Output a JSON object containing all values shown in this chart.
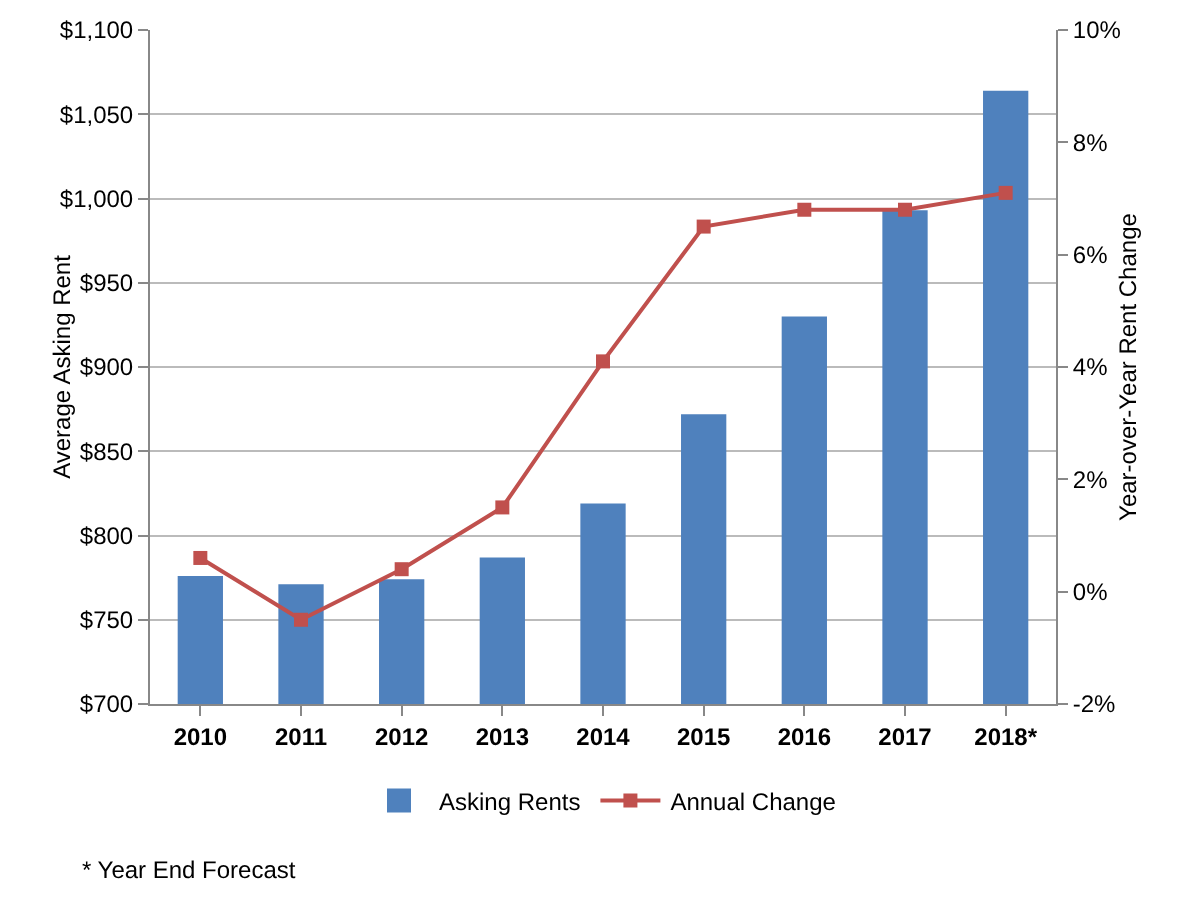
{
  "chart_data": {
    "type": "bar",
    "ylabel": "Average Asking Rent",
    "y2label": "Year-over-Year Rent Change",
    "categories": [
      "2010",
      "2011",
      "2012",
      "2013",
      "2014",
      "2015",
      "2016",
      "2017",
      "2018*"
    ],
    "series": [
      {
        "name": "Asking Rents",
        "type": "bar",
        "color": "#4f81bd",
        "values": [
          776,
          771,
          774,
          787,
          819,
          872,
          930,
          993,
          1064
        ]
      },
      {
        "name": "Annual Change",
        "type": "line",
        "axis": "y2",
        "color": "#c0504d",
        "marker": "square",
        "values": [
          0.6,
          -0.5,
          0.4,
          1.5,
          4.1,
          6.5,
          6.8,
          6.8,
          7.1
        ]
      }
    ],
    "ylim": [
      700,
      1100
    ],
    "yticks": [
      {
        "value": 700,
        "label": "$700"
      },
      {
        "value": 750,
        "label": "$750"
      },
      {
        "value": 800,
        "label": "$800"
      },
      {
        "value": 850,
        "label": "$850"
      },
      {
        "value": 900,
        "label": "$900"
      },
      {
        "value": 950,
        "label": "$950"
      },
      {
        "value": 1000,
        "label": "$1,000"
      },
      {
        "value": 1050,
        "label": "$1,050"
      },
      {
        "value": 1100,
        "label": "$1,100"
      }
    ],
    "y2lim": [
      -2,
      10
    ],
    "y2ticks": [
      {
        "value": -2,
        "label": "-2%"
      },
      {
        "value": 0,
        "label": "0%"
      },
      {
        "value": 2,
        "label": "2%"
      },
      {
        "value": 4,
        "label": "4%"
      },
      {
        "value": 6,
        "label": "6%"
      },
      {
        "value": 8,
        "label": "8%"
      },
      {
        "value": 10,
        "label": "10%"
      }
    ],
    "grid": "y",
    "legend": "bottom",
    "annotations": [
      "* Year End Forecast"
    ]
  }
}
